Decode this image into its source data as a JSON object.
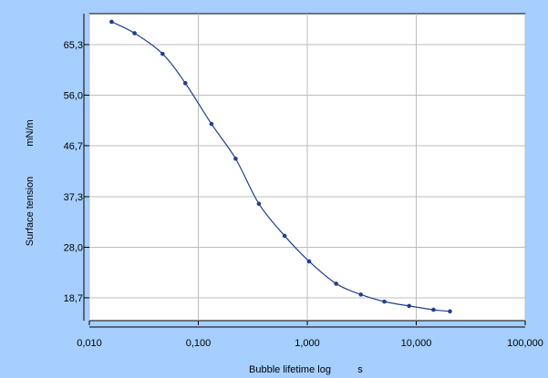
{
  "colors": {
    "background": "#a6cfff",
    "plot_area": "#ffffff",
    "grid": "#bcbcbc",
    "series": "#1f3f8f",
    "axis": "#000000"
  },
  "chart_data": {
    "type": "line",
    "xscale": "log",
    "xlim": [
      0.01,
      100
    ],
    "ylim": [
      14.5,
      71.0
    ],
    "grid": true,
    "legend": "none",
    "xlabel": "Bubble lifetime log",
    "xunit": "s",
    "ylabel": "Surface tension",
    "yunit": "mN/m",
    "x_ticks": [
      {
        "value": 0.01,
        "label": "0,010"
      },
      {
        "value": 0.1,
        "label": "0,100"
      },
      {
        "value": 1,
        "label": "1,000"
      },
      {
        "value": 10,
        "label": "10,000"
      },
      {
        "value": 100,
        "label": "100,000"
      }
    ],
    "y_ticks": [
      {
        "value": 18.7,
        "label": "18,7"
      },
      {
        "value": 28.0,
        "label": "28,0"
      },
      {
        "value": 37.3,
        "label": "37,3"
      },
      {
        "value": 46.7,
        "label": "46,7"
      },
      {
        "value": 56.0,
        "label": "56,0"
      },
      {
        "value": 65.3,
        "label": "65,3"
      }
    ],
    "series": [
      {
        "x": [
          0.016,
          0.026,
          0.047,
          0.076,
          0.132,
          0.22,
          0.36,
          0.62,
          1.04,
          1.84,
          3.1,
          5.1,
          8.6,
          14.4,
          20.4
        ],
        "y": [
          69.5,
          67.4,
          63.6,
          58.2,
          50.7,
          44.3,
          36.0,
          30.1,
          25.4,
          21.3,
          19.3,
          18.0,
          17.2,
          16.5,
          16.2
        ]
      }
    ]
  }
}
